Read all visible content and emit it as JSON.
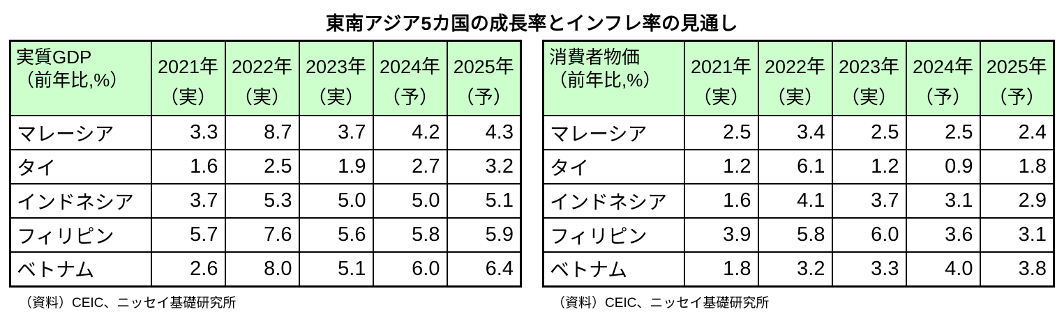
{
  "title": "東南アジア5カ国の成長率とインフレ率の見通し",
  "colors": {
    "header_bg": "#ccffcc",
    "border": "#000000",
    "text": "#000000",
    "background": "#ffffff"
  },
  "chart_data": [
    {
      "type": "table",
      "corner": {
        "line1": "実質GDP",
        "line2": "（前年比,%）"
      },
      "columns": [
        {
          "year": "2021年",
          "kind": "（実）"
        },
        {
          "year": "2022年",
          "kind": "（実）"
        },
        {
          "year": "2023年",
          "kind": "（実）"
        },
        {
          "year": "2024年",
          "kind": "（予）"
        },
        {
          "year": "2025年",
          "kind": "（予）"
        }
      ],
      "rows": [
        {
          "label": "マレーシア",
          "values": [
            "3.3",
            "8.7",
            "3.7",
            "4.2",
            "4.3"
          ]
        },
        {
          "label": "タイ",
          "values": [
            "1.6",
            "2.5",
            "1.9",
            "2.7",
            "3.2"
          ]
        },
        {
          "label": "インドネシア",
          "values": [
            "3.7",
            "5.3",
            "5.0",
            "5.0",
            "5.1"
          ]
        },
        {
          "label": "フィリピン",
          "values": [
            "5.7",
            "7.6",
            "5.6",
            "5.8",
            "5.9"
          ]
        },
        {
          "label": "ベトナム",
          "values": [
            "2.6",
            "8.0",
            "5.1",
            "6.0",
            "6.4"
          ]
        }
      ],
      "source": "（資料）CEIC、ニッセイ基礎研究所"
    },
    {
      "type": "table",
      "corner": {
        "line1": "消費者物価",
        "line2": "（前年比,%）"
      },
      "columns": [
        {
          "year": "2021年",
          "kind": "（実）"
        },
        {
          "year": "2022年",
          "kind": "（実）"
        },
        {
          "year": "2023年",
          "kind": "（実）"
        },
        {
          "year": "2024年",
          "kind": "（予）"
        },
        {
          "year": "2025年",
          "kind": "（予）"
        }
      ],
      "rows": [
        {
          "label": "マレーシア",
          "values": [
            "2.5",
            "3.4",
            "2.5",
            "2.5",
            "2.4"
          ]
        },
        {
          "label": "タイ",
          "values": [
            "1.2",
            "6.1",
            "1.2",
            "0.9",
            "1.8"
          ]
        },
        {
          "label": "インドネシア",
          "values": [
            "1.6",
            "4.1",
            "3.7",
            "3.1",
            "2.9"
          ]
        },
        {
          "label": "フィリピン",
          "values": [
            "3.9",
            "5.8",
            "6.0",
            "3.6",
            "3.1"
          ]
        },
        {
          "label": "ベトナム",
          "values": [
            "1.8",
            "3.2",
            "3.3",
            "4.0",
            "3.8"
          ]
        }
      ],
      "source": "（資料）CEIC、ニッセイ基礎研究所"
    }
  ]
}
